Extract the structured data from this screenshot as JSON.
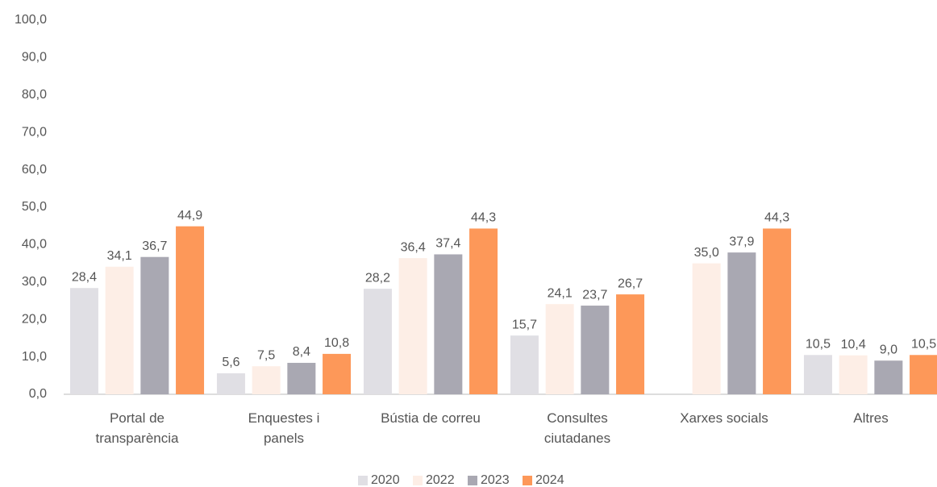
{
  "chart_data": {
    "type": "bar",
    "categories": [
      "Portal de transparència",
      "Enquestes i panels",
      "Bústia de correu",
      "Consultes ciutadanes",
      "Xarxes socials",
      "Altres"
    ],
    "series": [
      {
        "name": "2020",
        "color": "#e0dfe4",
        "values": [
          28.4,
          5.6,
          28.2,
          15.7,
          null,
          10.5
        ],
        "value_labels": [
          "28,4",
          "5,6",
          "28,2",
          "15,7",
          null,
          "10,5"
        ]
      },
      {
        "name": "2022",
        "color": "#fdeee6",
        "values": [
          34.1,
          7.5,
          36.4,
          24.1,
          35.0,
          10.4
        ],
        "value_labels": [
          "34,1",
          "7,5",
          "36,4",
          "24,1",
          "35,0",
          "10,4"
        ]
      },
      {
        "name": "2023",
        "color": "#a9a8b2",
        "values": [
          36.7,
          8.4,
          37.4,
          23.7,
          37.9,
          9.0
        ],
        "value_labels": [
          "36,7",
          "8,4",
          "37,4",
          "23,7",
          "37,9",
          "9,0"
        ]
      },
      {
        "name": "2024",
        "color": "#fd9859",
        "values": [
          44.9,
          10.8,
          44.3,
          26.7,
          44.3,
          10.5
        ],
        "value_labels": [
          "44,9",
          "10,8",
          "44,3",
          "26,7",
          "44,3",
          "10,5"
        ]
      }
    ],
    "ylim": [
      0,
      100
    ],
    "yticks": [
      {
        "value": 0,
        "label": "0,0"
      },
      {
        "value": 10,
        "label": "10,0"
      },
      {
        "value": 20,
        "label": "20,0"
      },
      {
        "value": 30,
        "label": "30,0"
      },
      {
        "value": 40,
        "label": "40,0"
      },
      {
        "value": 50,
        "label": "50,0"
      },
      {
        "value": 60,
        "label": "60,0"
      },
      {
        "value": 70,
        "label": "70,0"
      },
      {
        "value": 80,
        "label": "80,0"
      },
      {
        "value": 90,
        "label": "90,0"
      },
      {
        "value": 100,
        "label": "100,0"
      }
    ],
    "grid": false,
    "legend": "bottom"
  }
}
